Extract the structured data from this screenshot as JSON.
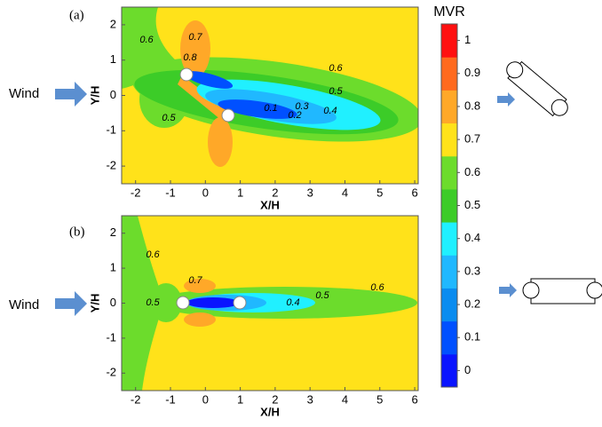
{
  "chart_data": [
    {
      "type": "contour",
      "panel_label": "(a)",
      "x_label": "X/H",
      "y_label": "Y/H",
      "annotation": "Wind",
      "xlim": [
        -2.4,
        6.1
      ],
      "ylim": [
        -2.5,
        2.5
      ],
      "xticks": [
        -2,
        -1,
        0,
        1,
        2,
        3,
        4,
        5,
        6
      ],
      "yticks": [
        -2,
        -1,
        0,
        1,
        2
      ],
      "contour_labels": [
        "0.6",
        "0.7",
        "0.8",
        "0.6",
        "0.5",
        "0.3",
        "0.4",
        "0.1",
        "0.2",
        "0.5"
      ]
    },
    {
      "type": "contour",
      "panel_label": "(b)",
      "x_label": "X/H",
      "y_label": "Y/H",
      "annotation": "Wind",
      "xlim": [
        -2.4,
        6.1
      ],
      "ylim": [
        -2.5,
        2.5
      ],
      "xticks": [
        -2,
        -1,
        0,
        1,
        2,
        3,
        4,
        5,
        6
      ],
      "yticks": [
        -2,
        -1,
        0,
        1,
        2
      ],
      "contour_labels": [
        "0.6",
        "0.7",
        "0.5",
        "0.4",
        "0.5",
        "0.6"
      ]
    },
    {
      "type": "colorbar",
      "title": "MVR",
      "ylim": [
        -0.05,
        1.05
      ],
      "yticks": [
        0,
        0.1,
        0.2,
        0.3,
        0.4,
        0.5,
        0.6,
        0.7,
        0.8,
        0.9,
        1
      ],
      "colors": [
        "#0a14ff",
        "#0050ff",
        "#0a8cf0",
        "#20b8ff",
        "#20f0ff",
        "#3ccc28",
        "#6cdc2c",
        "#ffe21a",
        "#ffa828",
        "#ff6a1e",
        "#ff1010"
      ]
    }
  ]
}
